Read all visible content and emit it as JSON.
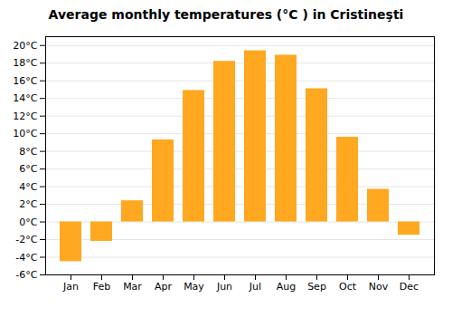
{
  "chart_data": {
    "type": "bar",
    "title": "Average monthly temperatures (°C ) in Cristineşti",
    "categories": [
      "Jan",
      "Feb",
      "Mar",
      "Apr",
      "May",
      "Jun",
      "Jul",
      "Aug",
      "Sep",
      "Oct",
      "Nov",
      "Dec"
    ],
    "values": [
      -4.5,
      -2.2,
      2.4,
      9.3,
      14.9,
      18.2,
      19.4,
      18.9,
      15.1,
      9.6,
      3.7,
      -1.5
    ],
    "color": "#FFA820",
    "ylim": [
      -6,
      21
    ],
    "yticks": [
      {
        "value": -6,
        "label": "-6°C"
      },
      {
        "value": -4,
        "label": "-4°C"
      },
      {
        "value": -2,
        "label": "-2°C"
      },
      {
        "value": 0,
        "label": "0°C"
      },
      {
        "value": 2,
        "label": "2°C"
      },
      {
        "value": 4,
        "label": "4°C"
      },
      {
        "value": 6,
        "label": "6°C"
      },
      {
        "value": 8,
        "label": "8°C"
      },
      {
        "value": 10,
        "label": "10°C"
      },
      {
        "value": 12,
        "label": "12°C"
      },
      {
        "value": 14,
        "label": "14°C"
      },
      {
        "value": 16,
        "label": "16°C"
      },
      {
        "value": 18,
        "label": "18°C"
      },
      {
        "value": 20,
        "label": "20°C"
      }
    ],
    "grid": true
  }
}
